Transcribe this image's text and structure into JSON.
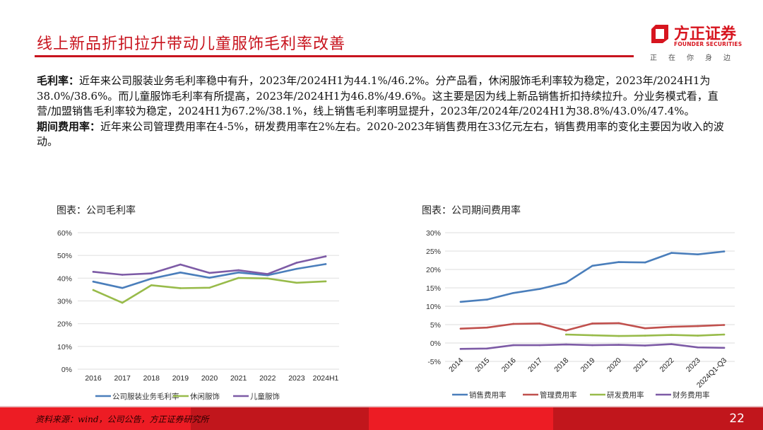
{
  "header": {
    "title": "线上新品折扣拉升带动儿童服饰毛利率改善",
    "logo": {
      "name_cn": "方正证券",
      "name_en": "FOUNDER SECURITIES",
      "slogan": [
        "正",
        "在",
        "你",
        "身",
        "边"
      ]
    },
    "accent_color": "#c8141e"
  },
  "body": {
    "paragraphs": [
      {
        "label": "毛利率：",
        "text": "近年来公司服装业务毛利率稳中有升，2023年/2024H1为44.1%/46.2%。分产品看，休闲服饰毛利率较为稳定，2023年/2024H1为38.0%/38.6%。而儿童服饰毛利率有所提高，2023年/2024H1为46.8%/49.6%。这主要是因为线上新品销售折扣持续拉升。分业务模式看，直营/加盟销售毛利率较为稳定，2024H1为67.2%/38.1%，线上销售毛利率明显提升，2023年/2024年/2024H1为38.8%/43.0%/47.4%。"
      },
      {
        "label": "期间费用率：",
        "text": "近年来公司管理费用率在4-5%，研发费用率在2%左右。2020-2023年销售费用在33亿元左右，销售费用率的变化主要因为收入的波动。"
      }
    ]
  },
  "chart_data": [
    {
      "type": "line",
      "title": "图表：公司毛利率",
      "xlabel": "",
      "ylabel": "",
      "categories": [
        "2016",
        "2017",
        "2018",
        "2019",
        "2020",
        "2021",
        "2022",
        "2023",
        "2024H1"
      ],
      "ylim": [
        0,
        60
      ],
      "yticks": [
        0,
        10,
        20,
        30,
        40,
        50,
        60
      ],
      "ytick_labels": [
        "0%",
        "10%",
        "20%",
        "30%",
        "40%",
        "50%",
        "60%"
      ],
      "grid": true,
      "legend_position": "bottom",
      "series": [
        {
          "name": "公司服装业务毛利率",
          "color": "#4a7ebb",
          "values": [
            38.5,
            35.7,
            39.8,
            42.5,
            40.2,
            42.5,
            41.3,
            44.1,
            46.2
          ]
        },
        {
          "name": "休闲服饰",
          "color": "#98bb4a",
          "values": [
            34.8,
            29.2,
            36.9,
            35.6,
            35.8,
            40.1,
            39.9,
            38.0,
            38.6
          ]
        },
        {
          "name": "儿童服饰",
          "color": "#7d5ba6",
          "values": [
            42.8,
            41.5,
            42.1,
            46.0,
            42.3,
            43.5,
            41.8,
            46.8,
            49.6
          ]
        }
      ]
    },
    {
      "type": "line",
      "title": "图表：公司期间费用率",
      "xlabel": "",
      "ylabel": "",
      "categories": [
        "2014",
        "2015",
        "2016",
        "2017",
        "2018",
        "2019",
        "2020",
        "2021",
        "2022",
        "2023",
        "2024Q1-Q3"
      ],
      "ylim": [
        -5,
        30
      ],
      "yticks": [
        -5,
        0,
        5,
        10,
        15,
        20,
        25,
        30
      ],
      "ytick_labels": [
        "-5%",
        "0%",
        "5%",
        "10%",
        "15%",
        "20%",
        "25%",
        "30%"
      ],
      "grid": true,
      "legend_position": "bottom",
      "series": [
        {
          "name": "销售费用率",
          "color": "#4a7ebb",
          "values": [
            11.2,
            11.8,
            13.6,
            14.7,
            16.4,
            21.0,
            22.0,
            21.9,
            24.5,
            24.1,
            24.9
          ]
        },
        {
          "name": "管理费用率",
          "color": "#c0504d",
          "values": [
            3.9,
            4.2,
            5.2,
            5.3,
            3.4,
            5.3,
            5.4,
            4.0,
            4.4,
            4.6,
            4.9
          ]
        },
        {
          "name": "研发费用率",
          "color": "#98bb4a",
          "values": [
            null,
            null,
            null,
            null,
            2.3,
            2.1,
            1.9,
            2.0,
            2.2,
            2.0,
            2.3
          ]
        },
        {
          "name": "财务费用率",
          "color": "#7d5ba6",
          "values": [
            -1.6,
            -1.5,
            -0.6,
            -0.6,
            -0.4,
            -0.6,
            -0.5,
            -0.7,
            -0.3,
            -1.2,
            -1.3
          ]
        }
      ]
    }
  ],
  "footer": {
    "source": "资料来源：wind，公司公告，方正证券研究所",
    "page_number": "22",
    "band_colors": [
      "#ed1c24",
      "#c1161c",
      "#ed1c24",
      "#c1161c"
    ]
  }
}
